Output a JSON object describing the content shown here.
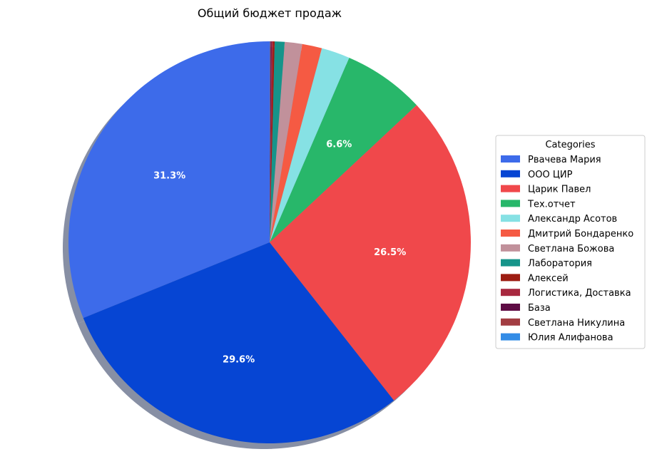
{
  "chart_data": {
    "type": "pie",
    "title": "Общий бюджет продаж",
    "legend_title": "Categories",
    "legend_position": "right",
    "start_angle_deg": 90,
    "direction": "counterclockwise",
    "shadow": true,
    "slices": [
      {
        "label": "Рвачева Мария",
        "value": 31.3,
        "color": "#3d6bea",
        "pct_label": "31.3%"
      },
      {
        "label": "ООО ЦИР",
        "value": 29.6,
        "color": "#0645d3",
        "pct_label": "29.6%"
      },
      {
        "label": "Царик Павел",
        "value": 26.5,
        "color": "#f0484b",
        "pct_label": "26.5%"
      },
      {
        "label": "Тех.отчет",
        "value": 6.6,
        "color": "#28b76a",
        "pct_label": "6.6%"
      },
      {
        "label": "Александр Асотов",
        "value": 2.3,
        "color": "#86e1e4",
        "pct_label": ""
      },
      {
        "label": "Дмитрий Бондаренко",
        "value": 1.6,
        "color": "#f55a43",
        "pct_label": ""
      },
      {
        "label": "Светлана Божова",
        "value": 1.4,
        "color": "#c1919b",
        "pct_label": ""
      },
      {
        "label": "Лаборатория",
        "value": 0.8,
        "color": "#16948a",
        "pct_label": ""
      },
      {
        "label": "Алексей",
        "value": 0.15,
        "color": "#9c1c12",
        "pct_label": ""
      },
      {
        "label": "Логистика,  Доставка",
        "value": 0.1,
        "color": "#a8283f",
        "pct_label": ""
      },
      {
        "label": "База",
        "value": 0.07,
        "color": "#5e0c44",
        "pct_label": ""
      },
      {
        "label": "Светлана Никулина",
        "value": 0.05,
        "color": "#a23d42",
        "pct_label": ""
      },
      {
        "label": "Юлия Алифанова",
        "value": 0.03,
        "color": "#338ce6",
        "pct_label": ""
      }
    ]
  }
}
